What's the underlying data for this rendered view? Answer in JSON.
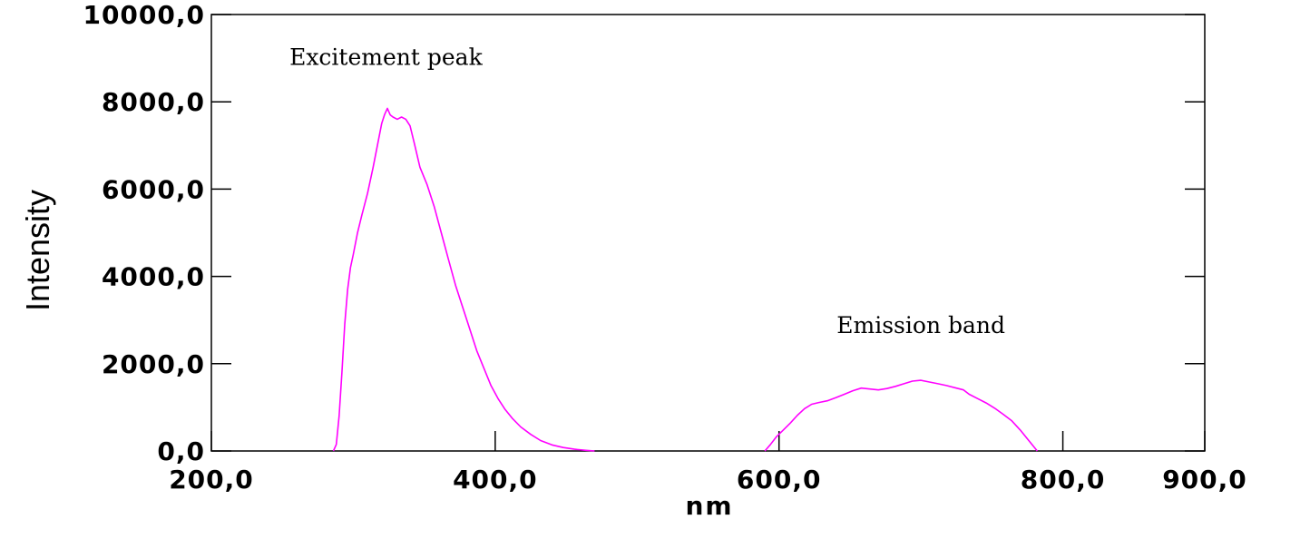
{
  "chart_data": {
    "type": "line",
    "title": "",
    "xlabel": "nm",
    "ylabel": "Intensity",
    "xlim": [
      200,
      900
    ],
    "ylim": [
      0,
      10000
    ],
    "x_ticks": [
      200,
      400,
      600,
      800,
      900
    ],
    "x_tick_labels": [
      "200,0",
      "400,0",
      "600,0",
      "800,0",
      "900,0"
    ],
    "y_ticks": [
      0,
      2000,
      4000,
      6000,
      8000,
      10000
    ],
    "y_tick_labels": [
      "0,0",
      "2000,0",
      "4000,0",
      "6000,0",
      "8000,0",
      "10000,0"
    ],
    "grid": false,
    "line_color": "#ff00ff",
    "annotations": [
      {
        "text": "Excitement peak",
        "x": 323,
        "y": 8850
      },
      {
        "text": "Emission band",
        "x": 700,
        "y": 2700
      }
    ],
    "series": [
      {
        "name": "",
        "points": [
          [
            286,
            0
          ],
          [
            288,
            150
          ],
          [
            290,
            800
          ],
          [
            292,
            1800
          ],
          [
            294,
            2900
          ],
          [
            296,
            3700
          ],
          [
            298,
            4200
          ],
          [
            300,
            4500
          ],
          [
            303,
            5000
          ],
          [
            306,
            5400
          ],
          [
            310,
            5900
          ],
          [
            314,
            6500
          ],
          [
            317,
            7000
          ],
          [
            320,
            7500
          ],
          [
            322,
            7700
          ],
          [
            324,
            7850
          ],
          [
            326,
            7700
          ],
          [
            328,
            7650
          ],
          [
            331,
            7600
          ],
          [
            334,
            7650
          ],
          [
            337,
            7600
          ],
          [
            340,
            7450
          ],
          [
            343,
            7050
          ],
          [
            347,
            6500
          ],
          [
            352,
            6100
          ],
          [
            357,
            5600
          ],
          [
            362,
            5000
          ],
          [
            367,
            4400
          ],
          [
            372,
            3800
          ],
          [
            377,
            3300
          ],
          [
            382,
            2800
          ],
          [
            387,
            2300
          ],
          [
            392,
            1900
          ],
          [
            397,
            1500
          ],
          [
            402,
            1200
          ],
          [
            407,
            950
          ],
          [
            412,
            750
          ],
          [
            418,
            550
          ],
          [
            425,
            380
          ],
          [
            432,
            240
          ],
          [
            440,
            140
          ],
          [
            448,
            80
          ],
          [
            456,
            40
          ],
          [
            464,
            15
          ],
          [
            470,
            0
          ]
        ]
      },
      {
        "name": "",
        "points": [
          [
            590,
            0
          ],
          [
            594,
            150
          ],
          [
            598,
            320
          ],
          [
            603,
            480
          ],
          [
            608,
            640
          ],
          [
            613,
            820
          ],
          [
            618,
            970
          ],
          [
            623,
            1070
          ],
          [
            628,
            1110
          ],
          [
            634,
            1150
          ],
          [
            640,
            1220
          ],
          [
            646,
            1300
          ],
          [
            652,
            1380
          ],
          [
            658,
            1440
          ],
          [
            664,
            1420
          ],
          [
            670,
            1400
          ],
          [
            676,
            1430
          ],
          [
            682,
            1480
          ],
          [
            688,
            1540
          ],
          [
            694,
            1600
          ],
          [
            700,
            1620
          ],
          [
            706,
            1580
          ],
          [
            712,
            1540
          ],
          [
            718,
            1500
          ],
          [
            724,
            1450
          ],
          [
            730,
            1400
          ],
          [
            734,
            1300
          ],
          [
            740,
            1200
          ],
          [
            746,
            1100
          ],
          [
            752,
            980
          ],
          [
            758,
            840
          ],
          [
            764,
            690
          ],
          [
            770,
            480
          ],
          [
            776,
            240
          ],
          [
            782,
            0
          ]
        ]
      }
    ]
  }
}
